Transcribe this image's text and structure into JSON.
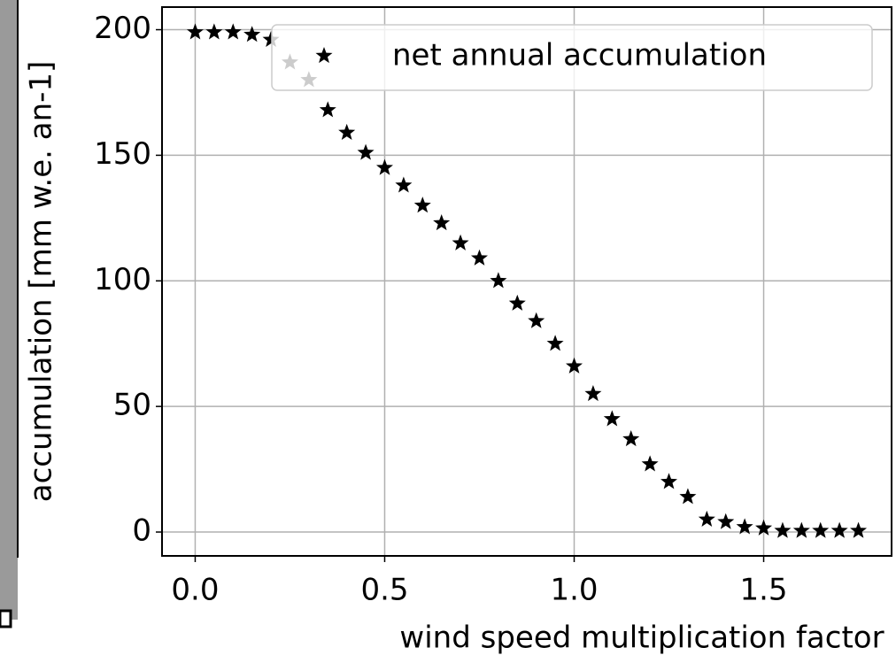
{
  "chart_data": {
    "type": "scatter",
    "x_label": "wind speed multiplication factor",
    "y_label": "accumulation [mm w.e. an-1]",
    "x": [
      0,
      0.05,
      0.1,
      0.15,
      0.2,
      0.25,
      0.3,
      0.35,
      0.4,
      0.45,
      0.5,
      0.55,
      0.6,
      0.65,
      0.7,
      0.75,
      0.8,
      0.85,
      0.9,
      0.95,
      1.0,
      1.05,
      1.1,
      1.15,
      1.2,
      1.25,
      1.3,
      1.35,
      1.4,
      1.45,
      1.5,
      1.55,
      1.6,
      1.65,
      1.7,
      1.75
    ],
    "series": [
      {
        "name": "net annual accumulation",
        "color": "#000000",
        "values": [
          199,
          199,
          199,
          198,
          196,
          187,
          180,
          168,
          159,
          151,
          145,
          138,
          130,
          123,
          115,
          109,
          100,
          91,
          84,
          75,
          66,
          55,
          45,
          37,
          27,
          20,
          14,
          5,
          4,
          2,
          1.5,
          0.5,
          0.5,
          0.5,
          0.5,
          0.5
        ]
      }
    ],
    "xlim": [
      -0.0875,
      1.8375
    ],
    "ylim": [
      -9.5,
      209
    ],
    "xticks": [
      {
        "value": 0,
        "label": "0.0"
      },
      {
        "value": 0.5,
        "label": "0.5"
      },
      {
        "value": 1.0,
        "label": "1.0"
      },
      {
        "value": 1.5,
        "label": "1.5"
      }
    ],
    "yticks": [
      0,
      50,
      100,
      150,
      200
    ],
    "grid": true,
    "legend": "upper right"
  }
}
